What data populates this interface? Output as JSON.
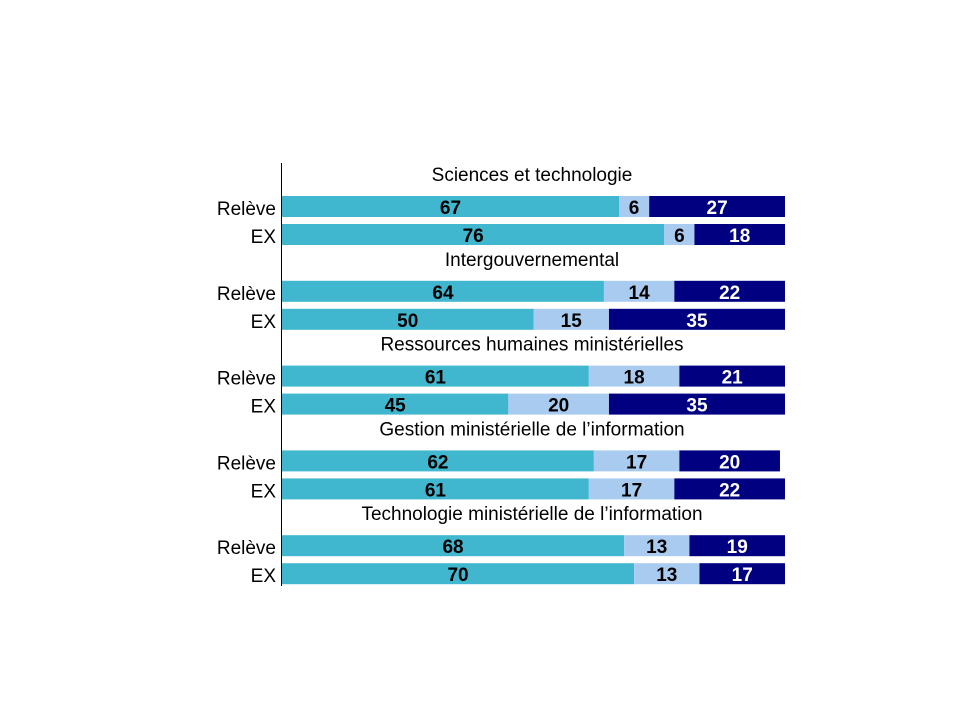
{
  "chart_data": {
    "type": "bar",
    "orientation": "horizontal",
    "stacked": true,
    "unit": "percent",
    "xlim": [
      0,
      100
    ],
    "grid": false,
    "legend": "none",
    "series_colors": [
      "#41B6CF",
      "#A9CBF0",
      "#000080"
    ],
    "value_label_colors": [
      "#000000",
      "#000000",
      "#FFFFFF"
    ],
    "groups": [
      {
        "title": "Sciences et technologie",
        "rows": [
          {
            "label": "Relève",
            "values": [
              67,
              6,
              27
            ]
          },
          {
            "label": "EX",
            "values": [
              76,
              6,
              18
            ]
          }
        ]
      },
      {
        "title": "Intergouvernemental",
        "rows": [
          {
            "label": "Relève",
            "values": [
              64,
              14,
              22
            ]
          },
          {
            "label": "EX",
            "values": [
              50,
              15,
              35
            ]
          }
        ]
      },
      {
        "title": "Ressources humaines ministérielles",
        "rows": [
          {
            "label": "Relève",
            "values": [
              61,
              18,
              21
            ]
          },
          {
            "label": "EX",
            "values": [
              45,
              20,
              35
            ]
          }
        ]
      },
      {
        "title": "Gestion ministérielle de l’information",
        "rows": [
          {
            "label": "Relève",
            "values": [
              62,
              17,
              20
            ]
          },
          {
            "label": "EX",
            "values": [
              61,
              17,
              22
            ]
          }
        ]
      },
      {
        "title": "Technologie ministérielle de l’information",
        "rows": [
          {
            "label": "Relève",
            "values": [
              68,
              13,
              19
            ]
          },
          {
            "label": "EX",
            "values": [
              70,
              13,
              17
            ]
          }
        ]
      }
    ]
  }
}
